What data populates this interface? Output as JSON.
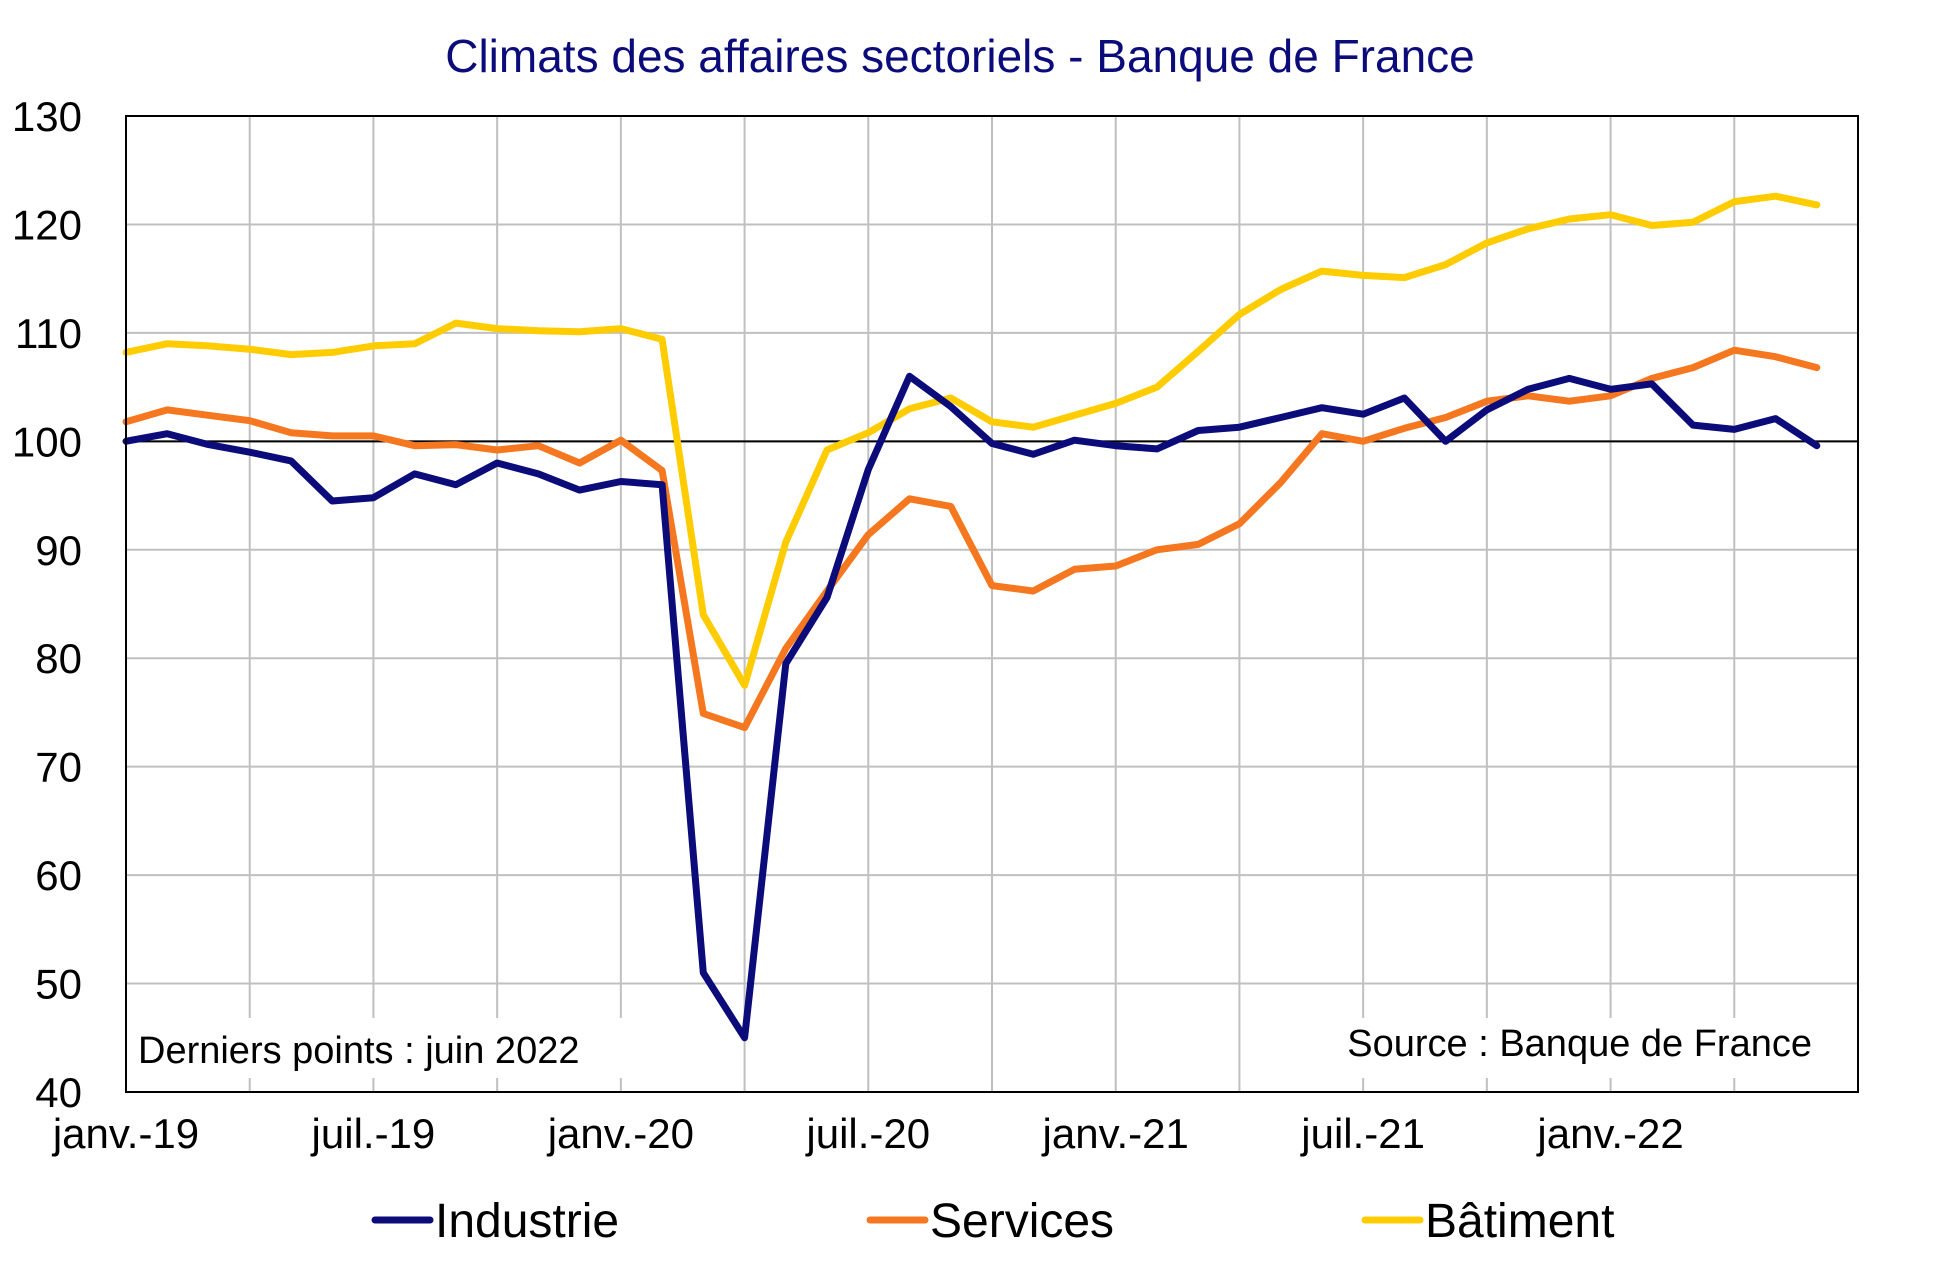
{
  "chart_data": {
    "type": "line",
    "title": "Climats des affaires sectoriels  - Banque de France",
    "xlabel": "",
    "ylabel": "",
    "ylim": [
      40,
      130
    ],
    "yticks": [
      40,
      50,
      60,
      70,
      80,
      90,
      100,
      110,
      120,
      130
    ],
    "reference_line": 100,
    "grid": true,
    "legend_position": "bottom",
    "x": [
      "2019-01",
      "2019-02",
      "2019-03",
      "2019-04",
      "2019-05",
      "2019-06",
      "2019-07",
      "2019-08",
      "2019-09",
      "2019-10",
      "2019-11",
      "2019-12",
      "2020-01",
      "2020-02",
      "2020-03",
      "2020-04",
      "2020-05",
      "2020-06",
      "2020-07",
      "2020-08",
      "2020-09",
      "2020-10",
      "2020-11",
      "2020-12",
      "2021-01",
      "2021-02",
      "2021-03",
      "2021-04",
      "2021-05",
      "2021-06",
      "2021-07",
      "2021-08",
      "2021-09",
      "2021-10",
      "2021-11",
      "2021-12",
      "2022-01",
      "2022-02",
      "2022-03",
      "2022-04",
      "2022-05",
      "2022-06"
    ],
    "xtick_labels": [
      {
        "index": 0,
        "label": "janv.-19"
      },
      {
        "index": 6,
        "label": "juil.-19"
      },
      {
        "index": 12,
        "label": "janv.-20"
      },
      {
        "index": 18,
        "label": "juil.-20"
      },
      {
        "index": 24,
        "label": "janv.-21"
      },
      {
        "index": 30,
        "label": "juil.-21"
      },
      {
        "index": 36,
        "label": "janv.-22"
      }
    ],
    "series": [
      {
        "name": "Industrie",
        "color": "#0b0b7a",
        "values": [
          100.0,
          100.7,
          99.7,
          99.0,
          98.2,
          94.5,
          94.8,
          97.0,
          96.0,
          98.0,
          97.0,
          95.5,
          96.3,
          96.0,
          51.0,
          45.0,
          79.5,
          85.6,
          97.4,
          106.0,
          103.2,
          99.8,
          98.8,
          100.1,
          99.6,
          99.3,
          101.0,
          101.3,
          102.2,
          103.1,
          102.5,
          104.0,
          100.0,
          102.9,
          104.8,
          105.8,
          104.8,
          105.3,
          101.5,
          101.1,
          102.1,
          99.6
        ]
      },
      {
        "name": "Services",
        "color": "#f5771f",
        "values": [
          101.8,
          102.9,
          102.4,
          101.9,
          100.8,
          100.5,
          100.5,
          99.6,
          99.7,
          99.2,
          99.6,
          98.0,
          100.1,
          97.3,
          74.9,
          73.6,
          80.9,
          86.2,
          91.4,
          94.7,
          94.0,
          86.7,
          86.2,
          88.2,
          88.5,
          90.0,
          90.5,
          92.4,
          96.2,
          100.7,
          100.0,
          101.2,
          102.2,
          103.7,
          104.2,
          103.7,
          104.2,
          105.8,
          106.8,
          108.4,
          107.8,
          106.8
        ]
      },
      {
        "name": "Bâtiment",
        "color": "#ffcc00",
        "values": [
          108.2,
          109.0,
          108.8,
          108.5,
          108.0,
          108.2,
          108.8,
          109.0,
          110.9,
          110.4,
          110.2,
          110.1,
          110.4,
          109.4,
          84.0,
          77.5,
          90.7,
          99.2,
          100.8,
          103.0,
          104.0,
          101.8,
          101.3,
          102.4,
          103.5,
          105.0,
          108.3,
          111.7,
          114.0,
          115.7,
          115.3,
          115.1,
          116.3,
          118.3,
          119.6,
          120.5,
          120.9,
          119.9,
          120.2,
          122.1,
          122.6,
          121.8
        ]
      }
    ],
    "annotations": [
      "Derniers points : juin 2022",
      "Source : Banque de France"
    ]
  }
}
